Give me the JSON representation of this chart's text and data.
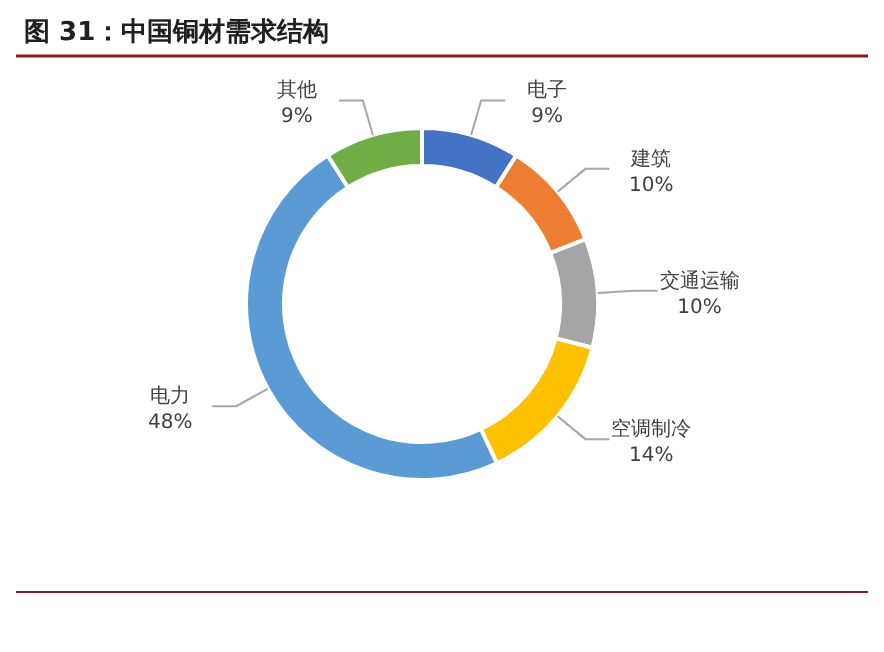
{
  "chart_data": {
    "type": "donut",
    "title": "图 31：中国铜材需求结构",
    "categories": [
      "电子",
      "建筑",
      "交通运输",
      "空调制冷",
      "电力",
      "其他"
    ],
    "values": [
      9,
      10,
      10,
      14,
      48,
      9
    ],
    "value_labels": [
      "9%",
      "10%",
      "10%",
      "14%",
      "48%",
      "9%"
    ],
    "colors": [
      "#4472c4",
      "#ed7d31",
      "#a5a5a5",
      "#ffc000",
      "#5b9bd5",
      "#70ad47"
    ]
  }
}
